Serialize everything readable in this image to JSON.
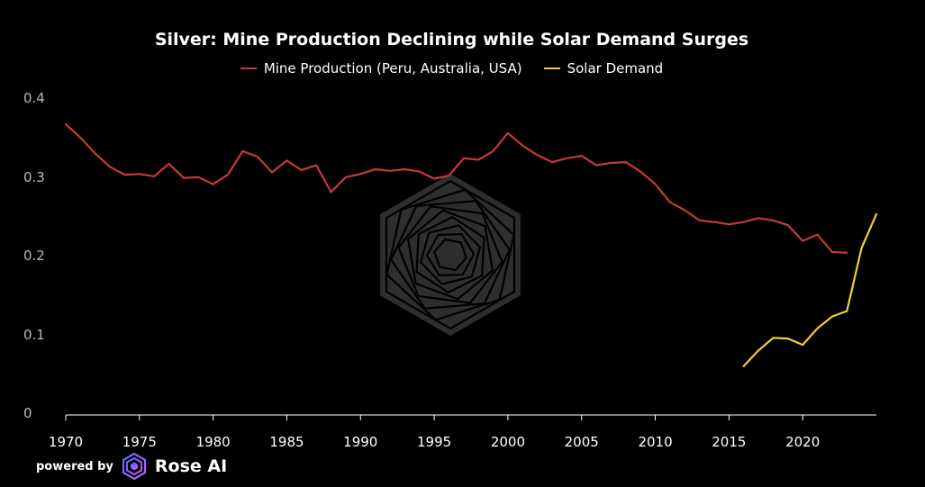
{
  "chart_data": {
    "type": "line",
    "title": "Silver: Mine Production Declining while Solar Demand Surges",
    "xlabel": "",
    "ylabel": "",
    "xlim": [
      1970,
      2025
    ],
    "ylim": [
      0,
      0.4
    ],
    "x_ticks": [
      1970,
      1975,
      1980,
      1985,
      1990,
      1995,
      2000,
      2005,
      2010,
      2015,
      2020
    ],
    "y_ticks": [
      0,
      0.1,
      0.2,
      0.3,
      0.4
    ],
    "grid": false,
    "legend_position": "top-center",
    "series": [
      {
        "name": "Mine Production (Peru, Australia, USA)",
        "color": "#c8383c",
        "x": [
          1970,
          1971,
          1972,
          1973,
          1974,
          1975,
          1976,
          1977,
          1978,
          1979,
          1980,
          1981,
          1982,
          1983,
          1984,
          1985,
          1986,
          1987,
          1988,
          1989,
          1990,
          1991,
          1992,
          1993,
          1994,
          1995,
          1996,
          1997,
          1998,
          1999,
          2000,
          2001,
          2002,
          2003,
          2004,
          2005,
          2006,
          2007,
          2008,
          2009,
          2010,
          2011,
          2012,
          2013,
          2014,
          2015,
          2016,
          2017,
          2018,
          2019,
          2020,
          2021,
          2022,
          2023
        ],
        "y": [
          0.369,
          0.352,
          0.332,
          0.315,
          0.305,
          0.306,
          0.303,
          0.319,
          0.301,
          0.302,
          0.293,
          0.305,
          0.335,
          0.328,
          0.308,
          0.323,
          0.311,
          0.317,
          0.283,
          0.302,
          0.306,
          0.312,
          0.31,
          0.312,
          0.309,
          0.3,
          0.304,
          0.326,
          0.324,
          0.335,
          0.358,
          0.342,
          0.33,
          0.321,
          0.326,
          0.329,
          0.317,
          0.32,
          0.321,
          0.309,
          0.293,
          0.27,
          0.26,
          0.247,
          0.245,
          0.242,
          0.245,
          0.25,
          0.247,
          0.241,
          0.221,
          0.229,
          0.207,
          0.206
        ]
      },
      {
        "name": "Solar Demand",
        "color": "#f0d030",
        "x": [
          2016,
          2017,
          2018,
          2019,
          2020,
          2021,
          2022,
          2023,
          2024,
          2025
        ],
        "y": [
          0.062,
          0.082,
          0.098,
          0.097,
          0.089,
          0.11,
          0.125,
          0.132,
          0.212,
          0.255
        ]
      }
    ]
  },
  "branding": {
    "prefix": "powered by",
    "name": "Rose AI",
    "logo_icon": "rose-logo-icon"
  },
  "colors": {
    "background": "#000000",
    "axis": "#ffffff",
    "tick_label": "#b8b8b8",
    "watermark": "#2e2e2e"
  }
}
